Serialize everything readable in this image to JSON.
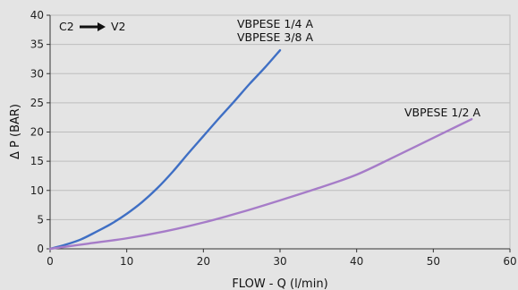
{
  "chart_data": {
    "type": "line",
    "xlabel": "FLOW - Q (l/min)",
    "ylabel": "Δ  P (BAR)",
    "xlim": [
      0,
      60
    ],
    "ylim": [
      0,
      40
    ],
    "x_ticks": [
      "0",
      "10",
      "20",
      "30",
      "40",
      "50",
      "60"
    ],
    "y_ticks": [
      "0",
      "5",
      "10",
      "15",
      "20",
      "25",
      "30",
      "35",
      "40"
    ],
    "grid": "horizontal",
    "flow_direction": {
      "from": "C2",
      "to": "V2"
    },
    "series": [
      {
        "name_lines": [
          "VBPESE 1/4 A",
          "VBPESE 3/8 A"
        ],
        "color": "#3f6fc4",
        "points": [
          [
            0,
            0
          ],
          [
            2,
            0.7
          ],
          [
            4,
            1.6
          ],
          [
            6,
            2.9
          ],
          [
            8,
            4.3
          ],
          [
            10,
            6.0
          ],
          [
            12,
            8.0
          ],
          [
            14,
            10.4
          ],
          [
            16,
            13.2
          ],
          [
            18,
            16.3
          ],
          [
            20,
            19.3
          ],
          [
            22,
            22.3
          ],
          [
            24,
            25.2
          ],
          [
            26,
            28.2
          ],
          [
            28,
            31.0
          ],
          [
            30,
            34.0
          ]
        ]
      },
      {
        "name_lines": [
          "VBPESE 1/2 A"
        ],
        "color": "#a67cc8",
        "points": [
          [
            0,
            0
          ],
          [
            5,
            0.9
          ],
          [
            10,
            1.8
          ],
          [
            15,
            3.0
          ],
          [
            20,
            4.5
          ],
          [
            25,
            6.3
          ],
          [
            30,
            8.3
          ],
          [
            35,
            10.4
          ],
          [
            40,
            12.7
          ],
          [
            45,
            15.8
          ],
          [
            50,
            19.0
          ],
          [
            55,
            22.2
          ]
        ]
      }
    ]
  }
}
